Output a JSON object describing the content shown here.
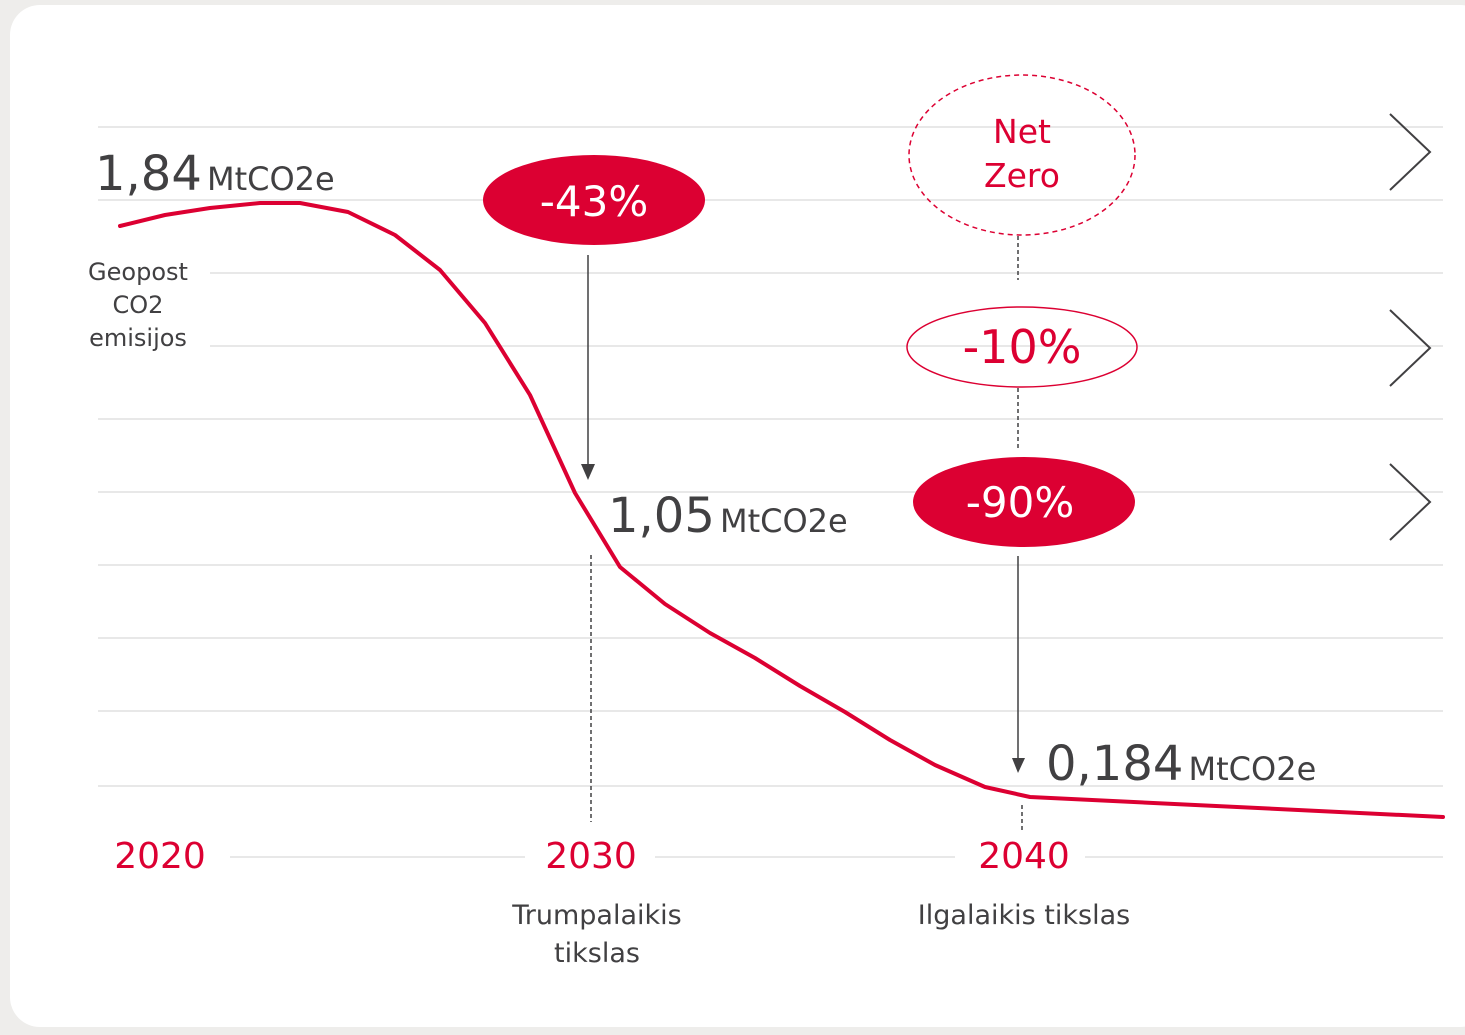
{
  "values": {
    "start": {
      "number": "1,84",
      "unit": "MtCO2e"
    },
    "mid": {
      "number": "1,05",
      "unit": "MtCO2e"
    },
    "end": {
      "number": "0,184",
      "unit": "MtCO2e"
    }
  },
  "series_label": [
    "Geopost",
    "CO2",
    "emisijos"
  ],
  "badges": {
    "short_term": "-43%",
    "net_zero": [
      "Net",
      "Zero"
    ],
    "residual": "-10%",
    "long_term": "-90%"
  },
  "years": [
    "2020",
    "2030",
    "2040"
  ],
  "targets": {
    "short_term": [
      "Trumpalaikis",
      "tikslas"
    ],
    "long_term": [
      "Ilgalaikis tikslas"
    ]
  }
}
